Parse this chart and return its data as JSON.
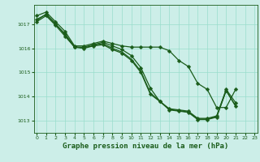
{
  "title": "Graphe pression niveau de la mer (hPa)",
  "bg_color": "#cceee8",
  "grid_color": "#99ddcc",
  "line_color": "#1a5c1a",
  "ylim": [
    1012.5,
    1017.8
  ],
  "yticks": [
    1013,
    1014,
    1015,
    1016,
    1017
  ],
  "xlim": [
    -0.3,
    23.3
  ],
  "xticks": [
    0,
    1,
    2,
    3,
    4,
    5,
    6,
    7,
    8,
    9,
    10,
    11,
    12,
    13,
    14,
    15,
    16,
    17,
    18,
    19,
    20,
    21,
    22,
    23
  ],
  "series": [
    [
      1017.35,
      1017.5,
      1017.1,
      1016.7,
      1016.1,
      1016.1,
      1016.2,
      1016.3,
      1016.2,
      1016.1,
      1016.05,
      1016.05,
      1016.05,
      1016.05,
      1015.9,
      1015.5,
      1015.25,
      1014.55,
      1014.3,
      1013.55,
      1013.55,
      1014.3,
      null,
      null
    ],
    [
      1017.2,
      1017.4,
      1017.0,
      1016.6,
      1016.05,
      1016.05,
      1016.15,
      1016.25,
      1016.1,
      1015.95,
      1015.7,
      1015.2,
      1014.35,
      1013.8,
      1013.5,
      1013.45,
      1013.4,
      1013.1,
      1013.1,
      1013.2,
      1014.3,
      1013.75,
      null,
      null
    ],
    [
      1017.1,
      1017.35,
      1016.95,
      1016.5,
      1016.05,
      1016.0,
      1016.1,
      1016.15,
      1015.95,
      1015.8,
      1015.5,
      1015.0,
      1014.1,
      1013.8,
      1013.45,
      1013.4,
      1013.35,
      1013.05,
      1013.05,
      1013.15,
      1014.25,
      1013.6,
      null,
      null
    ],
    [
      1017.15,
      1017.42,
      1017.02,
      1016.55,
      1016.05,
      1016.02,
      1016.12,
      1016.2,
      1016.0,
      1015.85,
      1015.55,
      1015.05,
      1014.15,
      1013.82,
      1013.47,
      1013.42,
      1013.36,
      1013.07,
      1013.07,
      1013.17,
      1014.25,
      1013.62,
      null,
      null
    ]
  ],
  "markers_idx": [
    0,
    1,
    2,
    3
  ],
  "markers_show": [
    true,
    true,
    true,
    false
  ],
  "marker_size": 2.5,
  "line_width": 0.9,
  "tick_fontsize": 4.5,
  "title_fontsize": 6.5
}
